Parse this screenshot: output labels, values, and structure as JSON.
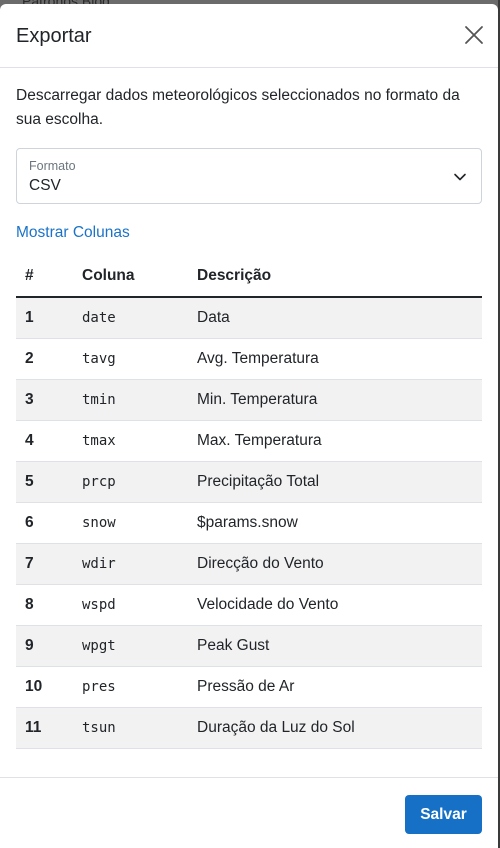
{
  "backdrop": {
    "text": "Patronos  Blog"
  },
  "modal": {
    "title": "Exportar",
    "description": "Descarregar dados meteorológicos seleccionados no formato da sua escolha.",
    "format": {
      "label": "Formato",
      "value": "CSV"
    },
    "show_columns_link": "Mostrar Colunas",
    "table": {
      "headers": [
        "#",
        "Coluna",
        "Descrição"
      ],
      "rows": [
        [
          "1",
          "date",
          "Data"
        ],
        [
          "2",
          "tavg",
          "Avg. Temperatura"
        ],
        [
          "3",
          "tmin",
          "Min. Temperatura"
        ],
        [
          "4",
          "tmax",
          "Max. Temperatura"
        ],
        [
          "5",
          "prcp",
          "Precipitação Total"
        ],
        [
          "6",
          "snow",
          "$params.snow"
        ],
        [
          "7",
          "wdir",
          "Direcção do Vento"
        ],
        [
          "8",
          "wspd",
          "Velocidade do Vento"
        ],
        [
          "9",
          "wpgt",
          "Peak Gust"
        ],
        [
          "10",
          "pres",
          "Pressão de Ar"
        ],
        [
          "11",
          "tsun",
          "Duração da Luz do Sol"
        ]
      ]
    },
    "save_label": "Salvar"
  },
  "colors": {
    "accent": "#1570c6",
    "link": "#1a73c8",
    "stripe": "#f2f2f2"
  },
  "icons": {
    "close": "close-icon",
    "chevron": "chevron-down-icon"
  }
}
